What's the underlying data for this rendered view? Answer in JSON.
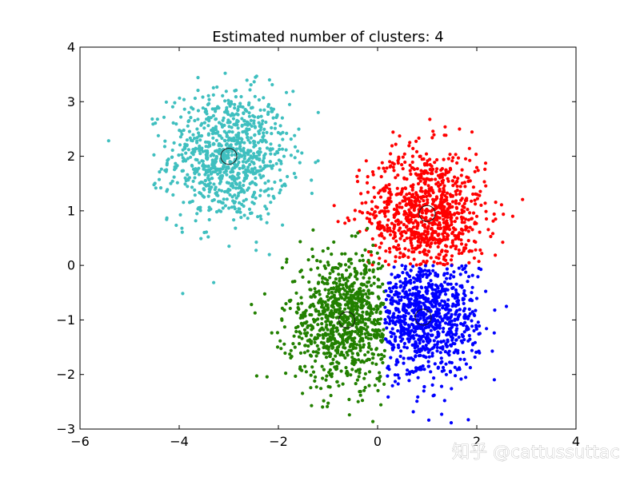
{
  "chart_data": {
    "type": "scatter",
    "title": "Estimated number of clusters: 4",
    "xlabel": "",
    "ylabel": "",
    "xlim": [
      -6,
      4
    ],
    "ylim": [
      -3,
      4
    ],
    "xticks": [
      -6,
      -4,
      -2,
      0,
      2,
      4
    ],
    "yticks": [
      -3,
      -2,
      -1,
      0,
      1,
      2,
      3,
      4
    ],
    "xtick_labels": [
      "−6",
      "−4",
      "−2",
      "0",
      "2",
      "4"
    ],
    "ytick_labels": [
      "−3",
      "−2",
      "−1",
      "0",
      "1",
      "2",
      "3",
      "4"
    ],
    "grid": false,
    "clusters": [
      {
        "color": "#3fbfbf",
        "center": [
          -3.0,
          2.0
        ],
        "spread": 0.6
      },
      {
        "color": "#ff0000",
        "center": [
          1.0,
          0.95
        ],
        "spread": 0.6
      },
      {
        "color": "#228000",
        "center": [
          -0.62,
          -1.0
        ],
        "spread": 0.6
      },
      {
        "color": "#0000ff",
        "center": [
          0.92,
          -0.95
        ],
        "spread": 0.55
      }
    ],
    "boundaries": {
      "green_blue_x": 0.15,
      "red_lower_y": 0.0
    }
  },
  "watermark": "知乎 @cattussuttac"
}
